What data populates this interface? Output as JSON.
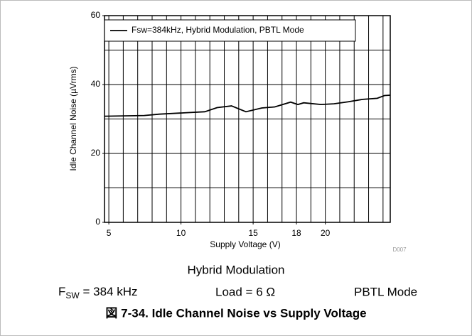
{
  "chart_data": {
    "type": "line",
    "xlabel": "Supply Voltage (V)",
    "ylabel": "Idle Channel Noise (µVrms)",
    "x": [
      4.7,
      7.46,
      8.5,
      10.3,
      11.65,
      12.5,
      13.5,
      14.5,
      15.6,
      16.5,
      17.6,
      18.1,
      18.5,
      19.7,
      20.6,
      21.6,
      22.6,
      23.6,
      24.1,
      24.5
    ],
    "series": [
      {
        "name": "Fsw=384kHz, Hybrid Modulation, PBTL Mode",
        "color": "#000000",
        "values": [
          30.8,
          31.0,
          31.4,
          31.8,
          32.1,
          33.3,
          33.8,
          32.1,
          33.2,
          33.5,
          34.9,
          34.2,
          34.7,
          34.2,
          34.4,
          35.0,
          35.7,
          36.0,
          36.8,
          36.9
        ]
      }
    ],
    "xlim": [
      4.7,
      24.5
    ],
    "ylim": [
      0,
      60
    ],
    "xticks": [
      5,
      10,
      15,
      18,
      20
    ],
    "yticks": [
      0,
      20,
      40,
      60
    ],
    "xgrid": [
      5,
      6,
      7,
      8,
      9,
      10,
      11,
      12,
      13,
      14,
      15,
      16,
      17,
      18,
      19,
      20,
      21,
      22,
      23,
      24
    ],
    "ygrid": [
      10,
      20,
      30,
      40,
      50
    ],
    "grid": true,
    "legend": "upper left",
    "figure_id": "D007",
    "subtitle": "Hybrid Modulation",
    "conditions": [
      {
        "symbol": "F",
        "subscript": "SW",
        "text": " = 384 kHz"
      },
      {
        "text": "Load = 6 Ω"
      },
      {
        "text": "PBTL Mode"
      }
    ],
    "caption": "図 7-34. Idle Channel Noise vs Supply Voltage"
  }
}
